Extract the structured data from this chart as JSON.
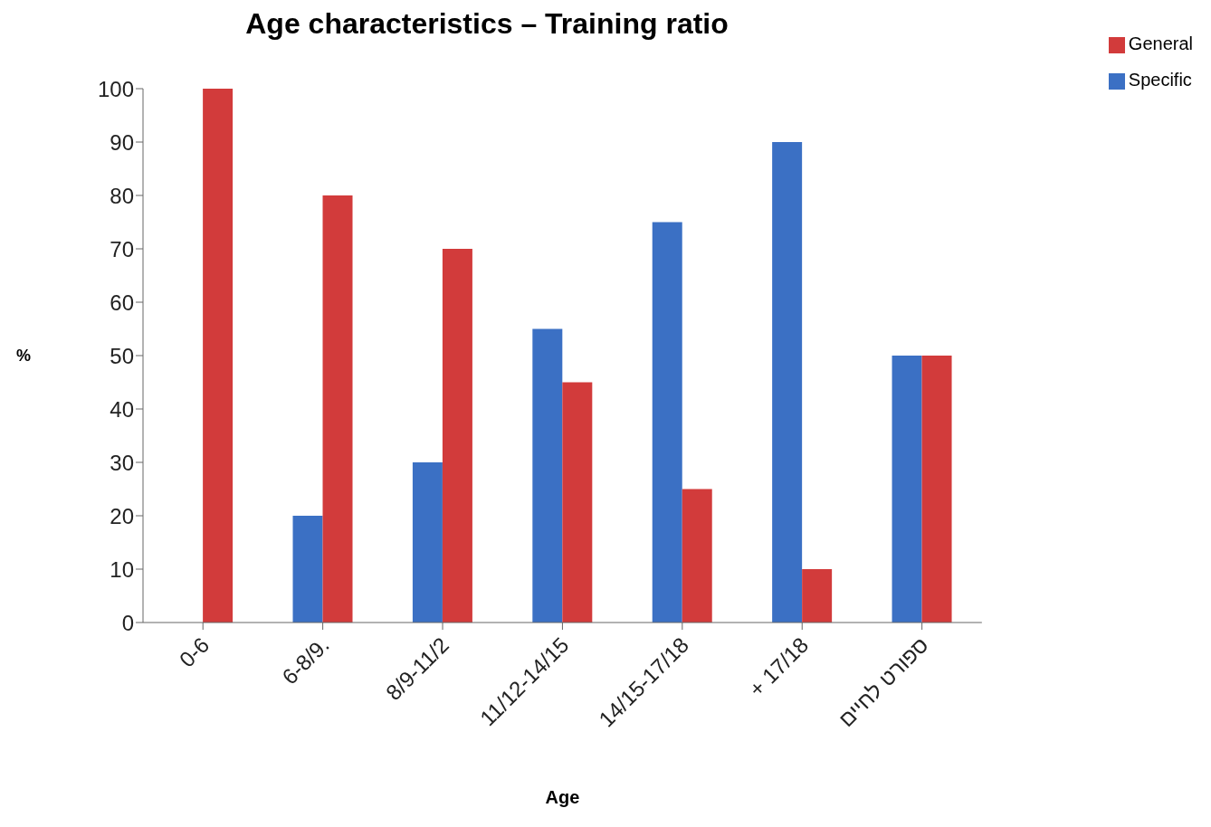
{
  "chart_data": {
    "type": "bar",
    "title": "Age characteristics – Training ratio",
    "xlabel": "Age",
    "ylabel": "%",
    "categories": [
      "0-6",
      "6-8/9.",
      "8/9-11/2",
      "11/12-14/15",
      "14/15-17/18",
      "+ 17/18",
      "ספורט לחיים"
    ],
    "series": [
      {
        "name": "Specific",
        "color": "#3b70c4",
        "values": [
          0,
          20,
          30,
          55,
          75,
          90,
          50
        ]
      },
      {
        "name": "General",
        "color": "#d23b3b",
        "values": [
          100,
          80,
          70,
          45,
          25,
          10,
          50
        ]
      }
    ],
    "ylim": [
      0,
      100
    ],
    "yticks": [
      0,
      10,
      20,
      30,
      40,
      50,
      60,
      70,
      80,
      90,
      100
    ],
    "grid": false,
    "legend": "top right"
  }
}
